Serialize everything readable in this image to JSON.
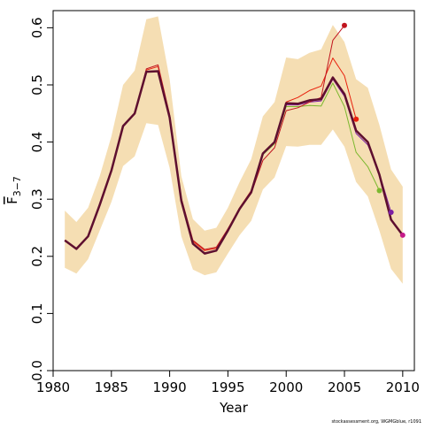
{
  "chart_data": {
    "type": "line",
    "xlabel": "Year",
    "ylabel_symbol": "F",
    "ylabel_subscript": "3−7",
    "credit": "stockassessment.org, WGMGblue, r1091",
    "xlim": [
      1980,
      2011
    ],
    "ylim": [
      0,
      0.63
    ],
    "x_ticks": [
      1980,
      1985,
      1990,
      1995,
      2000,
      2005,
      2010
    ],
    "y_ticks": [
      0.0,
      0.1,
      0.2,
      0.3,
      0.4,
      0.5,
      0.6
    ],
    "y_tick_labels": [
      "0.0",
      "0.1",
      "0.2",
      "0.3",
      "0.4",
      "0.5",
      "0.6"
    ],
    "grid": false,
    "confidence_band": {
      "color": "#f5deb3",
      "x": [
        1981,
        1982,
        1983,
        1984,
        1985,
        1986,
        1987,
        1988,
        1989,
        1990,
        1991,
        1992,
        1993,
        1994,
        1995,
        1996,
        1997,
        1998,
        1999,
        2000,
        2001,
        2002,
        2003,
        2004,
        2005,
        2006,
        2007,
        2008,
        2009,
        2010
      ],
      "upper": [
        0.28,
        0.26,
        0.285,
        0.34,
        0.41,
        0.5,
        0.525,
        0.615,
        0.62,
        0.51,
        0.34,
        0.265,
        0.245,
        0.25,
        0.285,
        0.33,
        0.37,
        0.445,
        0.47,
        0.548,
        0.545,
        0.556,
        0.562,
        0.605,
        0.575,
        0.51,
        0.495,
        0.43,
        0.352,
        0.322
      ],
      "lower": [
        0.18,
        0.17,
        0.195,
        0.245,
        0.295,
        0.358,
        0.375,
        0.433,
        0.43,
        0.355,
        0.235,
        0.177,
        0.167,
        0.172,
        0.205,
        0.237,
        0.262,
        0.317,
        0.338,
        0.393,
        0.392,
        0.395,
        0.395,
        0.422,
        0.392,
        0.33,
        0.305,
        0.245,
        0.178,
        0.152
      ]
    },
    "series": [
      {
        "color": "#5e0f2f",
        "width": 2.5,
        "x": [
          1981,
          1982,
          1983,
          1984,
          1985,
          1986,
          1987,
          1988,
          1989,
          1990,
          1991,
          1992,
          1993,
          1994,
          1995,
          1996,
          1997,
          1998,
          1999,
          2000,
          2001,
          2002,
          2003,
          2004,
          2005,
          2006,
          2007,
          2008,
          2009,
          2010
        ],
        "values": [
          0.228,
          0.213,
          0.235,
          0.29,
          0.35,
          0.428,
          0.45,
          0.523,
          0.524,
          0.443,
          0.297,
          0.222,
          0.205,
          0.21,
          0.245,
          0.283,
          0.312,
          0.38,
          0.4,
          0.468,
          0.467,
          0.473,
          0.475,
          0.513,
          0.484,
          0.42,
          0.4,
          0.343,
          0.264,
          0.237
        ],
        "end_marker": false
      },
      {
        "color": "#c51b8a",
        "width": 1,
        "x": [
          1981,
          1982,
          1983,
          1984,
          1985,
          1986,
          1987,
          1988,
          1989,
          1990,
          1991,
          1992,
          1993,
          1994,
          1995,
          1996,
          1997,
          1998,
          1999,
          2000,
          2001,
          2002,
          2003,
          2004,
          2005,
          2006,
          2007,
          2008,
          2009,
          2010
        ],
        "values": [
          0.228,
          0.213,
          0.235,
          0.29,
          0.35,
          0.428,
          0.45,
          0.523,
          0.524,
          0.443,
          0.297,
          0.222,
          0.205,
          0.21,
          0.245,
          0.283,
          0.312,
          0.38,
          0.4,
          0.468,
          0.467,
          0.473,
          0.475,
          0.513,
          0.484,
          0.42,
          0.4,
          0.343,
          0.264,
          0.237
        ],
        "end_marker": true
      },
      {
        "color": "#7b1fa2",
        "width": 1,
        "x": [
          1981,
          1982,
          1983,
          1984,
          1985,
          1986,
          1987,
          1988,
          1989,
          1990,
          1991,
          1992,
          1993,
          1994,
          1995,
          1996,
          1997,
          1998,
          1999,
          2000,
          2001,
          2002,
          2003,
          2004,
          2005,
          2006,
          2007,
          2008,
          2009
        ],
        "values": [
          0.228,
          0.213,
          0.235,
          0.29,
          0.35,
          0.428,
          0.45,
          0.523,
          0.524,
          0.443,
          0.297,
          0.222,
          0.205,
          0.21,
          0.245,
          0.283,
          0.312,
          0.378,
          0.398,
          0.465,
          0.465,
          0.47,
          0.472,
          0.51,
          0.48,
          0.415,
          0.395,
          0.345,
          0.277
        ],
        "end_marker": true
      },
      {
        "color": "#7cb82f",
        "width": 1,
        "x": [
          1981,
          1982,
          1983,
          1984,
          1985,
          1986,
          1987,
          1988,
          1989,
          1990,
          1991,
          1992,
          1993,
          1994,
          1995,
          1996,
          1997,
          1998,
          1999,
          2000,
          2001,
          2002,
          2003,
          2004,
          2005,
          2006,
          2007,
          2008
        ],
        "values": [
          0.228,
          0.213,
          0.235,
          0.29,
          0.35,
          0.428,
          0.45,
          0.523,
          0.524,
          0.443,
          0.297,
          0.222,
          0.205,
          0.21,
          0.245,
          0.283,
          0.312,
          0.378,
          0.397,
          0.462,
          0.462,
          0.464,
          0.463,
          0.503,
          0.462,
          0.382,
          0.357,
          0.315
        ],
        "end_marker": true
      },
      {
        "color": "#e8200c",
        "width": 1,
        "x": [
          1981,
          1982,
          1983,
          1984,
          1985,
          1986,
          1987,
          1988,
          1989,
          1990,
          1991,
          1992,
          1993,
          1994,
          1995,
          1996,
          1997,
          1998,
          1999,
          2000,
          2001,
          2002,
          2003,
          2004,
          2005,
          2006
        ],
        "values": [
          0.228,
          0.213,
          0.235,
          0.29,
          0.35,
          0.428,
          0.45,
          0.526,
          0.532,
          0.446,
          0.3,
          0.226,
          0.21,
          0.214,
          0.248,
          0.285,
          0.315,
          0.38,
          0.4,
          0.47,
          0.478,
          0.49,
          0.498,
          0.547,
          0.516,
          0.44
        ],
        "end_marker": true
      },
      {
        "color": "#c0141e",
        "width": 1,
        "x": [
          1981,
          1982,
          1983,
          1984,
          1985,
          1986,
          1987,
          1988,
          1989,
          1990,
          1991,
          1992,
          1993,
          1994,
          1995,
          1996,
          1997,
          1998,
          1999,
          2000,
          2001,
          2002,
          2003,
          2004,
          2005
        ],
        "values": [
          0.228,
          0.213,
          0.235,
          0.29,
          0.35,
          0.428,
          0.45,
          0.528,
          0.535,
          0.448,
          0.302,
          0.228,
          0.212,
          0.216,
          0.248,
          0.283,
          0.31,
          0.368,
          0.39,
          0.455,
          0.46,
          0.47,
          0.478,
          0.578,
          0.604
        ],
        "end_marker": true
      }
    ]
  }
}
